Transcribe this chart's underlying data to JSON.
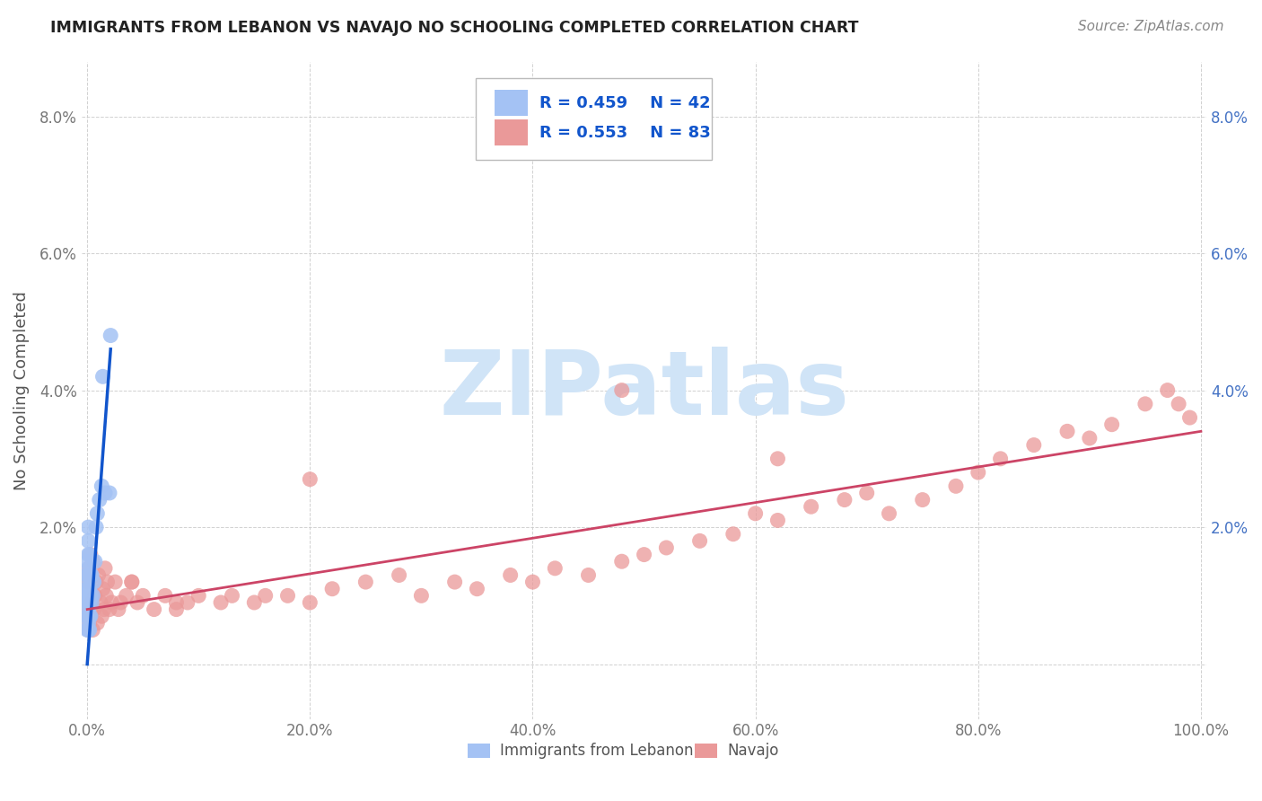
{
  "title": "IMMIGRANTS FROM LEBANON VS NAVAJO NO SCHOOLING COMPLETED CORRELATION CHART",
  "source": "Source: ZipAtlas.com",
  "ylabel": "No Schooling Completed",
  "legend_label_blue": "Immigrants from Lebanon",
  "legend_label_pink": "Navajo",
  "legend_r_blue": "R = 0.459",
  "legend_n_blue": "N = 42",
  "legend_r_pink": "R = 0.553",
  "legend_n_pink": "N = 83",
  "blue_scatter_color": "#a4c2f4",
  "pink_scatter_color": "#ea9999",
  "blue_line_color": "#1155cc",
  "pink_line_color": "#cc4466",
  "legend_text_color": "#1155cc",
  "title_color": "#222222",
  "source_color": "#888888",
  "axis_label_color": "#555555",
  "tick_label_color": "#777777",
  "right_tick_color": "#4472c4",
  "grid_color": "#cccccc",
  "watermark_color": "#d0e4f7",
  "background_color": "#ffffff",
  "xlim": [
    -0.005,
    1.005
  ],
  "ylim": [
    -0.008,
    0.088
  ],
  "xtick_vals": [
    0.0,
    0.2,
    0.4,
    0.6,
    0.8,
    1.0
  ],
  "ytick_vals": [
    0.0,
    0.02,
    0.04,
    0.06,
    0.08
  ],
  "xticklabels": [
    "0.0%",
    "20.0%",
    "40.0%",
    "60.0%",
    "80.0%",
    "100.0%"
  ],
  "yticklabels_left": [
    "",
    "2.0%",
    "4.0%",
    "6.0%",
    "8.0%"
  ],
  "yticklabels_right": [
    "",
    "2.0%",
    "4.0%",
    "6.0%",
    "8.0%"
  ],
  "blue_x": [
    0.0,
    0.0,
    0.0,
    0.0,
    0.0,
    0.0,
    0.0,
    0.0,
    0.001,
    0.001,
    0.001,
    0.001,
    0.001,
    0.001,
    0.001,
    0.001,
    0.001,
    0.001,
    0.001,
    0.001,
    0.002,
    0.002,
    0.002,
    0.002,
    0.002,
    0.002,
    0.003,
    0.003,
    0.003,
    0.004,
    0.004,
    0.005,
    0.006,
    0.007,
    0.008,
    0.009,
    0.011,
    0.013,
    0.014,
    0.016,
    0.02,
    0.021
  ],
  "blue_y": [
    0.005,
    0.007,
    0.009,
    0.01,
    0.011,
    0.012,
    0.013,
    0.015,
    0.005,
    0.006,
    0.007,
    0.008,
    0.009,
    0.01,
    0.011,
    0.013,
    0.014,
    0.016,
    0.018,
    0.02,
    0.005,
    0.007,
    0.009,
    0.011,
    0.013,
    0.016,
    0.007,
    0.01,
    0.013,
    0.009,
    0.013,
    0.01,
    0.012,
    0.015,
    0.02,
    0.022,
    0.024,
    0.026,
    0.042,
    0.025,
    0.025,
    0.048
  ],
  "pink_x": [
    0.0,
    0.001,
    0.001,
    0.002,
    0.002,
    0.003,
    0.003,
    0.004,
    0.005,
    0.005,
    0.006,
    0.007,
    0.008,
    0.009,
    0.01,
    0.012,
    0.013,
    0.014,
    0.015,
    0.016,
    0.017,
    0.018,
    0.02,
    0.022,
    0.025,
    0.028,
    0.03,
    0.035,
    0.04,
    0.045,
    0.05,
    0.06,
    0.07,
    0.08,
    0.09,
    0.1,
    0.12,
    0.13,
    0.15,
    0.16,
    0.18,
    0.2,
    0.22,
    0.25,
    0.28,
    0.3,
    0.33,
    0.35,
    0.38,
    0.4,
    0.42,
    0.45,
    0.48,
    0.5,
    0.52,
    0.55,
    0.58,
    0.6,
    0.62,
    0.65,
    0.68,
    0.7,
    0.72,
    0.75,
    0.78,
    0.8,
    0.82,
    0.85,
    0.88,
    0.9,
    0.92,
    0.95,
    0.97,
    0.98,
    0.99,
    0.62,
    0.48,
    0.2,
    0.08,
    0.04,
    0.003,
    0.002,
    0.001
  ],
  "pink_y": [
    0.008,
    0.005,
    0.012,
    0.006,
    0.014,
    0.007,
    0.013,
    0.009,
    0.005,
    0.015,
    0.008,
    0.01,
    0.012,
    0.006,
    0.013,
    0.009,
    0.007,
    0.011,
    0.008,
    0.014,
    0.01,
    0.012,
    0.008,
    0.009,
    0.012,
    0.008,
    0.009,
    0.01,
    0.012,
    0.009,
    0.01,
    0.008,
    0.01,
    0.008,
    0.009,
    0.01,
    0.009,
    0.01,
    0.009,
    0.01,
    0.01,
    0.009,
    0.011,
    0.012,
    0.013,
    0.01,
    0.012,
    0.011,
    0.013,
    0.012,
    0.014,
    0.013,
    0.015,
    0.016,
    0.017,
    0.018,
    0.019,
    0.022,
    0.021,
    0.023,
    0.024,
    0.025,
    0.022,
    0.024,
    0.026,
    0.028,
    0.03,
    0.032,
    0.034,
    0.033,
    0.035,
    0.038,
    0.04,
    0.038,
    0.036,
    0.03,
    0.04,
    0.027,
    0.009,
    0.012,
    0.016,
    0.013,
    0.007
  ],
  "pink_line_x0": 0.0,
  "pink_line_x1": 1.0,
  "pink_line_y0": 0.008,
  "pink_line_y1": 0.034,
  "blue_line_x0": 0.0,
  "blue_line_x1": 0.021,
  "blue_line_y0": 0.0,
  "blue_line_y1": 0.046
}
